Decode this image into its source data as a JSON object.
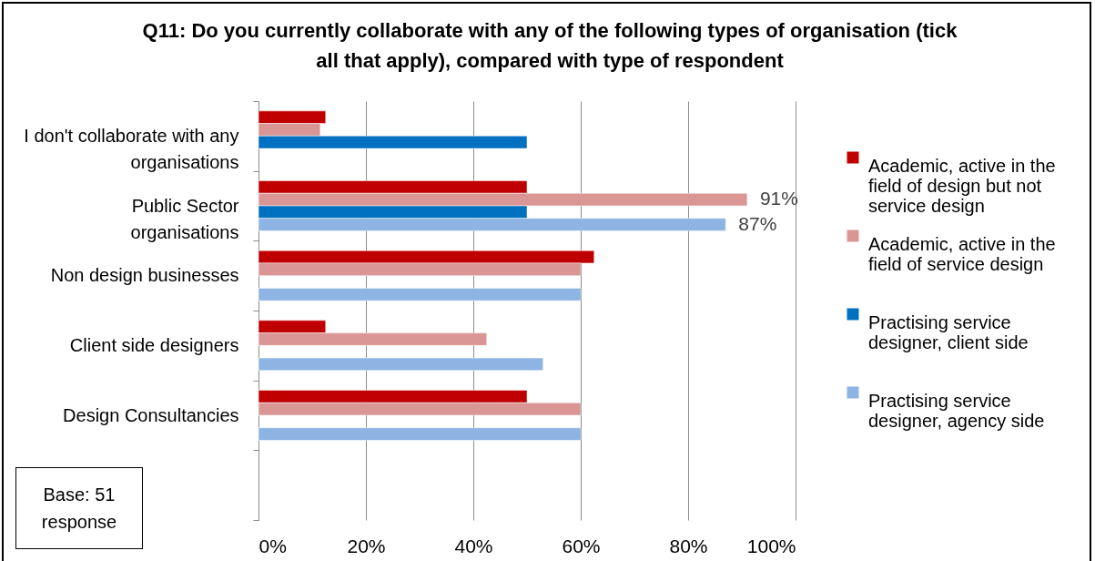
{
  "chart_data": {
    "type": "bar",
    "orientation": "horizontal",
    "title": "Q11: Do you currently collaborate with any of the following types of organisation (tick all that apply), compared with type of respondent",
    "categories": [
      "I don't collaborate with any organisations",
      "Public Sector organisations",
      "Non design businesses",
      "Client side designers",
      "Design Consultancies",
      null
    ],
    "series": [
      {
        "name": "Academic, active in the field of design but not service design",
        "color": "#c00000",
        "values": [
          12.5,
          50,
          62.5,
          12.5,
          50,
          null
        ]
      },
      {
        "name": "Academic, active in the field of service design",
        "color": "#d99694",
        "values": [
          11.5,
          91,
          60,
          42.5,
          60,
          null
        ],
        "value_labels": [
          null,
          "91%",
          null,
          null,
          null,
          null
        ]
      },
      {
        "name": "Practising service designer, client side",
        "color": "#0070c0",
        "values": [
          50,
          50,
          null,
          null,
          null,
          null
        ]
      },
      {
        "name": "Practising service designer, agency side",
        "color": "#8db4e2",
        "values": [
          null,
          87,
          60,
          53,
          60,
          null
        ],
        "value_labels": [
          null,
          "87%",
          null,
          null,
          null,
          null
        ]
      }
    ],
    "xlim": [
      0,
      100
    ],
    "xticks": [
      {
        "value": 0,
        "label": "0%"
      },
      {
        "value": 20,
        "label": "20%"
      },
      {
        "value": 40,
        "label": "40%"
      },
      {
        "value": 60,
        "label": "60%"
      },
      {
        "value": 80,
        "label": "80%"
      },
      {
        "value": 100,
        "label": "100%"
      }
    ],
    "grid": "x",
    "legend": "right",
    "annotations": [
      "Base: 51 response"
    ]
  }
}
